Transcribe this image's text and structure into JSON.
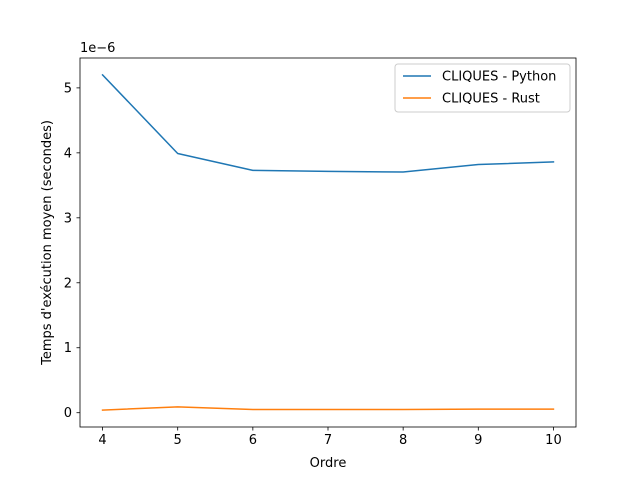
{
  "chart_data": {
    "type": "line",
    "xlabel": "Ordre",
    "ylabel": "Temps d'exécution moyen (secondes)",
    "y_offset_label": "1e−6",
    "y_scale": 1e-06,
    "xlim": [
      3.7,
      10.3
    ],
    "ylim": [
      -0.22,
      5.46
    ],
    "x_ticks": [
      4,
      5,
      6,
      7,
      8,
      9,
      10
    ],
    "y_ticks": [
      0,
      1,
      2,
      3,
      4,
      5
    ],
    "grid": false,
    "legend_position": "top-right",
    "x": [
      4,
      5,
      6,
      7,
      8,
      9,
      10
    ],
    "series": [
      {
        "name": "CLIQUES - Python",
        "color": "#1f77b4",
        "values": [
          5.2,
          3.99,
          3.73,
          3.715,
          3.705,
          3.82,
          3.86
        ]
      },
      {
        "name": "CLIQUES - Rust",
        "color": "#ff7f0e",
        "values": [
          0.04,
          0.09,
          0.05,
          0.05,
          0.05,
          0.055,
          0.055
        ]
      }
    ]
  }
}
